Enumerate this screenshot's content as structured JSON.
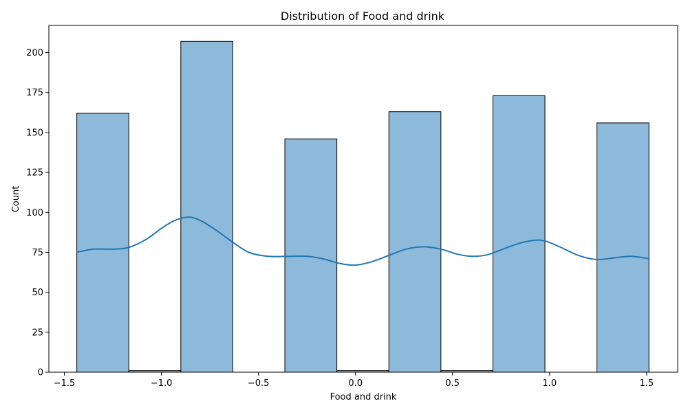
{
  "chart_data": {
    "type": "bar",
    "title": "Distribution of Food and drink",
    "xlabel": "Food and drink",
    "ylabel": "Count",
    "xlim": [
      -1.58,
      1.66
    ],
    "ylim": [
      0,
      217
    ],
    "xticks": [
      -1.5,
      -1.0,
      -0.5,
      0.0,
      0.5,
      1.0,
      1.5
    ],
    "xtick_labels": [
      "−1.5",
      "−1.0",
      "−0.5",
      "0.0",
      "0.5",
      "1.0",
      "1.5"
    ],
    "yticks": [
      0,
      25,
      50,
      75,
      100,
      125,
      150,
      175,
      200
    ],
    "ytick_labels": [
      "0",
      "25",
      "50",
      "75",
      "100",
      "125",
      "150",
      "175",
      "200"
    ],
    "bins": [
      {
        "x0": -1.436,
        "x1": -1.168,
        "count": 162
      },
      {
        "x0": -1.168,
        "x1": -0.9,
        "count": 1
      },
      {
        "x0": -0.9,
        "x1": -0.632,
        "count": 207
      },
      {
        "x0": -0.632,
        "x1": -0.364,
        "count": 0
      },
      {
        "x0": -0.364,
        "x1": -0.096,
        "count": 146
      },
      {
        "x0": -0.096,
        "x1": 0.172,
        "count": 1
      },
      {
        "x0": 0.172,
        "x1": 0.44,
        "count": 163
      },
      {
        "x0": 0.44,
        "x1": 0.708,
        "count": 1
      },
      {
        "x0": 0.708,
        "x1": 0.976,
        "count": 173
      },
      {
        "x0": 0.976,
        "x1": 1.244,
        "count": 0
      },
      {
        "x0": 1.244,
        "x1": 1.512,
        "count": 156
      }
    ],
    "kde": {
      "x": [
        -1.436,
        -1.35,
        -1.25,
        -1.17,
        -1.08,
        -1.0,
        -0.93,
        -0.86,
        -0.8,
        -0.72,
        -0.64,
        -0.55,
        -0.45,
        -0.35,
        -0.25,
        -0.17,
        -0.08,
        0.0,
        0.08,
        0.17,
        0.26,
        0.35,
        0.44,
        0.52,
        0.6,
        0.68,
        0.76,
        0.84,
        0.92,
        0.98,
        1.06,
        1.15,
        1.24,
        1.33,
        1.42,
        1.512
      ],
      "y": [
        75,
        77,
        77,
        78,
        83,
        90,
        95,
        97,
        95,
        89,
        82,
        75,
        72.5,
        72.5,
        72.5,
        71,
        68,
        67,
        69,
        73,
        77,
        78.5,
        77,
        74,
        72.5,
        73.5,
        77,
        80.5,
        82.5,
        82,
        78,
        73,
        70.5,
        71.5,
        72.5,
        71
      ]
    },
    "colors": {
      "bar_fill": "#8db9da",
      "bar_edge": "#000000",
      "kde_line": "#1f77b4"
    },
    "grid": false,
    "legend": "none"
  }
}
